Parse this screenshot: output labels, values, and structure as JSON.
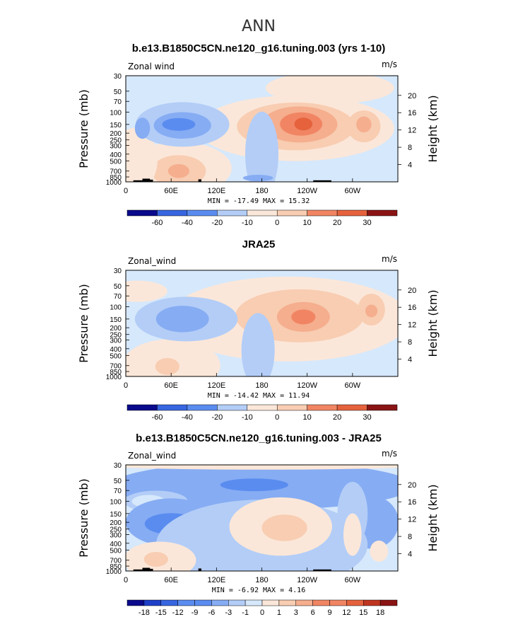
{
  "figure": {
    "title": "ANN",
    "ylabel_left": "Pressure (mb)",
    "ylabel_right": "Height (km)",
    "pressure_ticks": [
      "30",
      "50",
      "70",
      "100",
      "150",
      "200",
      "250",
      "300",
      "400",
      "500",
      "700",
      "850",
      "1000"
    ],
    "height_ticks": [
      "20",
      "16",
      "12",
      "8",
      "4"
    ],
    "lon_ticks": [
      "0",
      "60E",
      "120E",
      "180",
      "120W",
      "60W"
    ]
  },
  "chart_data": [
    {
      "type": "heatmap",
      "title": "b.e13.B1850C5CN.ne120_g16.tuning.003 (yrs 1-10)",
      "variable": "Zonal wind",
      "units": "m/s",
      "x_range": [
        0,
        360
      ],
      "y_range": [
        1000,
        30
      ],
      "stats_label": "MIN = -17.49   MAX =  15.32",
      "min": -17.49,
      "max": 15.32,
      "colorbar_labels": [
        "-60",
        "-40",
        "-20",
        "-10",
        "0",
        "10",
        "20",
        "30"
      ]
    },
    {
      "type": "heatmap",
      "title": "JRA25",
      "variable": "Zonal_wind",
      "units": "m/s",
      "x_range": [
        0,
        360
      ],
      "y_range": [
        1000,
        30
      ],
      "stats_label": "MIN = -14.42   MAX =  11.94",
      "min": -14.42,
      "max": 11.94,
      "colorbar_labels": [
        "-60",
        "-40",
        "-20",
        "-10",
        "0",
        "10",
        "20",
        "30"
      ]
    },
    {
      "type": "heatmap",
      "title": "b.e13.B1850C5CN.ne120_g16.tuning.003 - JRA25",
      "variable": "Zonal_wind",
      "units": "m/s",
      "x_range": [
        0,
        360
      ],
      "y_range": [
        1000,
        30
      ],
      "stats_label": "MIN =  -6.92   MAX =   4.16",
      "min": -6.92,
      "max": 4.16,
      "colorbar_labels": [
        "-18",
        "-15",
        "-12",
        "-9",
        "-6",
        "-3",
        "-1",
        "0",
        "1",
        "3",
        "6",
        "9",
        "12",
        "15",
        "18"
      ]
    }
  ],
  "colors": {
    "bg_default": "#d6e8fb",
    "ramp": [
      "#0a0a8c",
      "#1e3fc8",
      "#3766e0",
      "#5a8cf0",
      "#86acf3",
      "#b3cdf7",
      "#d6e8fb",
      "#fbe7d9",
      "#f8cdb2",
      "#f5ae8e",
      "#f18563",
      "#e5623d",
      "#c03520",
      "#8a1414"
    ],
    "topography": "#000000"
  }
}
